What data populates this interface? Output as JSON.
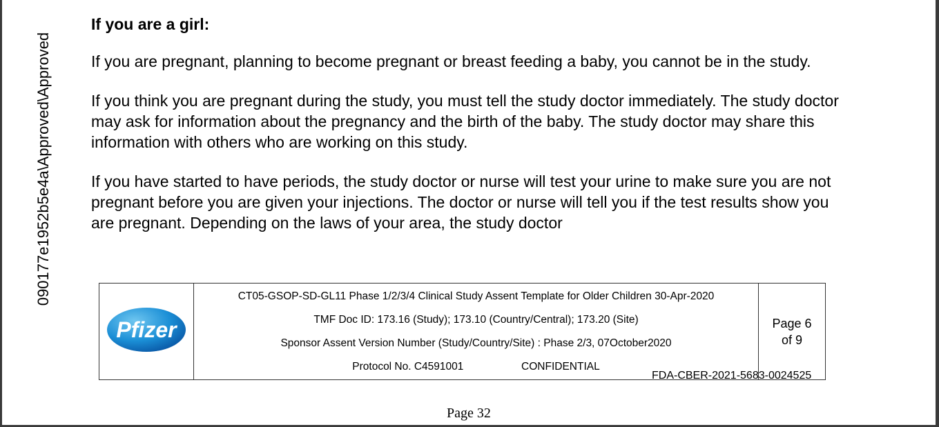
{
  "sidebar_id": "090177e1952b5e4a\\Approved\\Approved",
  "heading": "If you are a girl:",
  "paragraphs": [
    "If you are pregnant, planning to become pregnant or breast feeding a baby, you cannot be in the study.",
    "If you think you are pregnant during the study, you must tell the study doctor immediately. The study doctor may ask for information about the pregnancy and the birth of the baby.  The study doctor may share this information with others who are working on this study.",
    "If you have started to have periods, the study doctor or nurse will test your urine to make sure you are not pregnant before you are given your injections.  The doctor or nurse will tell you if the test results show you are pregnant.  Depending on the laws of your area, the study doctor"
  ],
  "footer": {
    "logo_text": "Pfizer",
    "line1": "CT05-GSOP-SD-GL11 Phase 1/2/3/4 Clinical Study Assent Template for Older Children 30-Apr-2020",
    "line2": "TMF Doc ID: 173.16 (Study); 173.10 (Country/Central); 173.20 (Site)",
    "line3": "Sponsor Assent Version Number (Study/Country/Site) : Phase 2/3, 07October2020",
    "protocol": "Protocol No. C4591001",
    "confidential": "CONFIDENTIAL",
    "page_of": "Page 6",
    "page_total": "of 9"
  },
  "fda_stamp": "FDA-CBER-2021-5683-0024525",
  "page_number": "Page 32"
}
